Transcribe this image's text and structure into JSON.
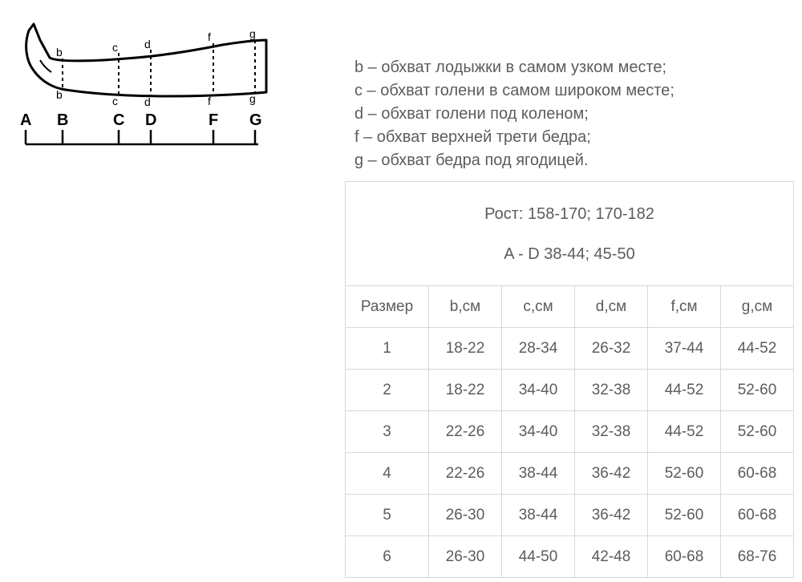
{
  "diagram": {
    "point_labels": [
      "b",
      "c",
      "d",
      "f",
      "g"
    ],
    "ruler_letters": [
      "A",
      "B",
      "C",
      "D",
      "F",
      "G"
    ],
    "ruler_x": [
      0,
      42,
      112,
      152,
      230,
      282
    ],
    "stroke": "#000000",
    "dash_color": "#000000",
    "label_fontsize": 14
  },
  "legend": {
    "lines": [
      "b – обхват лодыжки в самом узком месте;",
      "c – обхват голени в самом широком месте;",
      "d – обхват голени под коленом;",
      "f – обхват верхней трети бедра;",
      "g – обхват бедра под ягодицей."
    ],
    "color": "#5c5c5c",
    "fontsize": 20
  },
  "table": {
    "header_line1": "Рост: 158-170; 170-182",
    "header_line2": "A - D 38-44; 45-50",
    "columns": [
      "Размер",
      "b,см",
      "c,см",
      "d,см",
      "f,см",
      "g,см"
    ],
    "rows": [
      [
        "1",
        "18-22",
        "28-34",
        "26-32",
        "37-44",
        "44-52"
      ],
      [
        "2",
        "18-22",
        "34-40",
        "32-38",
        "44-52",
        "52-60"
      ],
      [
        "3",
        "22-26",
        "34-40",
        "32-38",
        "44-52",
        "52-60"
      ],
      [
        "4",
        "22-26",
        "38-44",
        "36-42",
        "52-60",
        "60-68"
      ],
      [
        "5",
        "26-30",
        "38-44",
        "36-42",
        "52-60",
        "60-68"
      ],
      [
        "6",
        "26-30",
        "44-50",
        "42-48",
        "60-68",
        "68-76"
      ]
    ],
    "border_color": "#d8d8d8",
    "text_color": "#5c5c5c",
    "fontsize": 19,
    "background": "#ffffff"
  }
}
